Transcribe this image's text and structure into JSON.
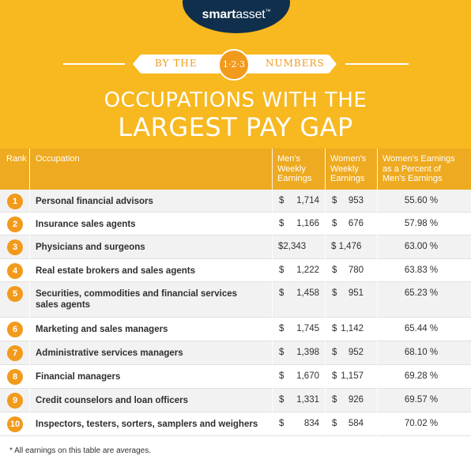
{
  "brand": {
    "smart": "smart",
    "asset": "asset",
    "tm": "™"
  },
  "banner": {
    "left": "BY THE",
    "center": "1·2·3",
    "right": "NUMBERS"
  },
  "title": {
    "line1": "OCCUPATIONS WITH THE",
    "line2": "LARGEST PAY GAP"
  },
  "headers": {
    "rank": "Rank",
    "occupation": "Occupation",
    "mens": [
      "Men's",
      "Weekly",
      "Earnings"
    ],
    "womens": [
      "Women's",
      "Weekly",
      "Earnings"
    ],
    "percent": [
      "Women's Earnings",
      "as a Percent of",
      "Men's Earnings"
    ]
  },
  "rows": [
    {
      "rank": "1",
      "occupation": [
        "Personal financial advisors"
      ],
      "men": "1,714",
      "women": "953",
      "pct": "55.60 %"
    },
    {
      "rank": "2",
      "occupation": [
        "Insurance sales agents"
      ],
      "men": "1,166",
      "women": "676",
      "pct": "57.98 %"
    },
    {
      "rank": "3",
      "occupation": [
        "Physicians and surgeons"
      ],
      "men": "$2,343",
      "women": "$ 1,476",
      "pct": "63.00 %",
      "combined": true
    },
    {
      "rank": "4",
      "occupation": [
        "Real estate brokers and sales agents"
      ],
      "men": "1,222",
      "women": "780",
      "pct": "63.83 %"
    },
    {
      "rank": "5",
      "occupation": [
        "Securities, commodities and financial services",
        "sales agents"
      ],
      "men": "1,458",
      "women": "951",
      "pct": "65.23 %"
    },
    {
      "rank": "6",
      "occupation": [
        "Marketing and sales managers"
      ],
      "men": "1,745",
      "women": "1,142",
      "pct": "65.44 %"
    },
    {
      "rank": "7",
      "occupation": [
        "Administrative services managers"
      ],
      "men": "1,398",
      "women": "952",
      "pct": "68.10 %"
    },
    {
      "rank": "8",
      "occupation": [
        "Financial managers"
      ],
      "men": "1,670",
      "women": "1,157",
      "pct": "69.28 %"
    },
    {
      "rank": "9",
      "occupation": [
        "Credit counselors and loan officers"
      ],
      "men": "1,331",
      "women": "926",
      "pct": "69.57 %"
    },
    {
      "rank": "10",
      "occupation": [
        "Inspectors, testers, sorters, samplers and weighers"
      ],
      "men": "834",
      "women": "584",
      "pct": "70.02 %"
    }
  ],
  "currency": "$",
  "footnote": "* All earnings on this table are averages.",
  "colors": {
    "background": "#f7b820",
    "header": "#eeaa20",
    "accent": "#f29a1b",
    "logo": "#0f2f4c"
  }
}
